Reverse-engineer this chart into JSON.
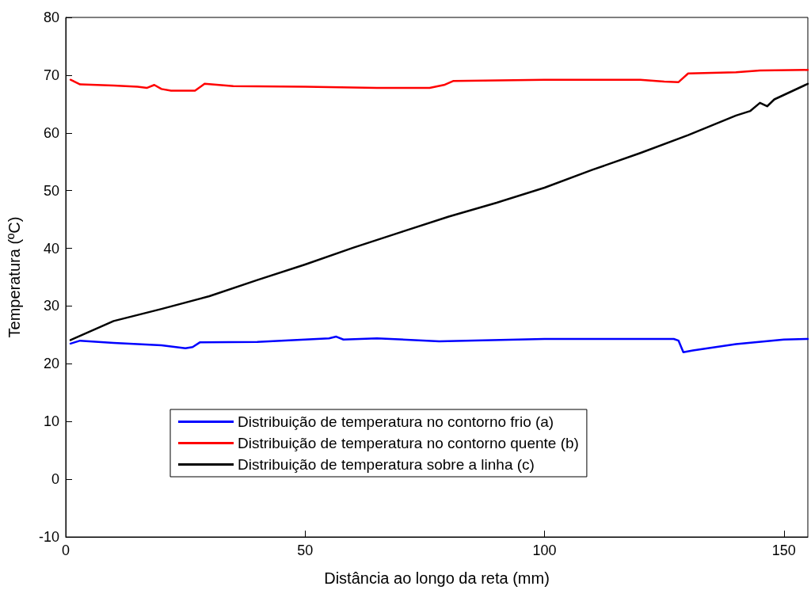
{
  "chart_data": {
    "type": "line",
    "xlabel": "Distância ao longo da reta (mm)",
    "ylabel": "Temperatura (ºC)",
    "xlim": [
      0,
      155
    ],
    "xticks": [
      0,
      50,
      100,
      150
    ],
    "ylim": [
      -10,
      80
    ],
    "yticks": [
      -10,
      0,
      10,
      20,
      30,
      40,
      50,
      60,
      70,
      80
    ],
    "grid": false,
    "legend": "bottom",
    "marker": "none",
    "line_style": "solid",
    "series": [
      {
        "name": "Distribuição de temperatura no contorno frio (a)",
        "color": "#0000ff",
        "x": [
          1,
          3,
          10,
          20,
          25,
          26.5,
          28,
          40,
          50,
          55,
          56.5,
          58,
          65,
          78,
          100,
          127,
          128,
          129,
          131,
          140,
          150,
          155
        ],
        "values": [
          23.5,
          24,
          23.6,
          23.2,
          22.7,
          22.9,
          23.7,
          23.8,
          24.2,
          24.4,
          24.7,
          24.2,
          24.4,
          23.9,
          24.3,
          24.3,
          24,
          22,
          22.3,
          23.4,
          24.2,
          24.3
        ]
      },
      {
        "name": "Distribuição de temperatura no contorno quente (b)",
        "color": "#ff0000",
        "x": [
          1,
          3,
          10,
          15,
          17,
          18.5,
          20,
          22,
          27,
          29,
          35,
          50,
          65,
          76,
          79,
          81,
          100,
          120,
          125,
          128,
          130,
          140,
          145,
          155
        ],
        "values": [
          69.2,
          68.4,
          68.2,
          68,
          67.8,
          68.3,
          67.6,
          67.3,
          67.3,
          68.5,
          68.1,
          68,
          67.8,
          67.8,
          68.3,
          69,
          69.2,
          69.2,
          68.9,
          68.8,
          70.3,
          70.5,
          70.8,
          70.9
        ]
      },
      {
        "name": "Distribuição de temperatura sobre a linha (c)",
        "color": "#000000",
        "x": [
          1,
          10,
          20,
          30,
          40,
          50,
          60,
          70,
          80,
          90,
          100,
          110,
          120,
          130,
          140,
          143,
          145,
          146.5,
          148,
          155
        ],
        "values": [
          24.1,
          27.4,
          29.5,
          31.7,
          34.5,
          37.2,
          40.1,
          42.8,
          45.5,
          47.9,
          50.5,
          53.6,
          56.5,
          59.6,
          63,
          63.8,
          65.2,
          64.6,
          65.8,
          68.5
        ]
      }
    ]
  }
}
